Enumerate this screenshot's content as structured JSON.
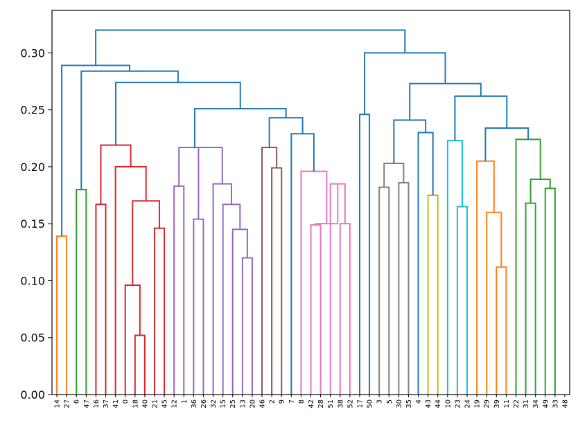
{
  "chart_data": {
    "type": "dendrogram",
    "title": "",
    "xlabel": "",
    "ylabel": "",
    "ylim": [
      0,
      0.33
    ],
    "yticks": [
      "0.00",
      "0.05",
      "0.10",
      "0.15",
      "0.20",
      "0.25",
      "0.30"
    ],
    "grid": false,
    "leaves": [
      "14",
      "27",
      "6",
      "47",
      "16",
      "37",
      "41",
      "0",
      "18",
      "40",
      "21",
      "45",
      "12",
      "1",
      "36",
      "26",
      "32",
      "15",
      "25",
      "13",
      "20",
      "46",
      "2",
      "9",
      "7",
      "8",
      "42",
      "28",
      "51",
      "38",
      "52",
      "17",
      "50",
      "3",
      "5",
      "30",
      "35",
      "4",
      "43",
      "44",
      "10",
      "23",
      "24",
      "19",
      "29",
      "39",
      "11",
      "22",
      "31",
      "34",
      "49",
      "33",
      "48"
    ],
    "merges": [
      {
        "a": 0,
        "b": 1,
        "h": 0.139,
        "color": "#ff7f0e"
      },
      {
        "a": 2,
        "b": 3,
        "h": 0.18,
        "color": "#2ca02c"
      },
      {
        "a": 8,
        "b": 9,
        "h": 0.052,
        "color": "#d62728"
      },
      {
        "a": 7,
        "b": 8.5,
        "h": 0.096,
        "color": "#d62728"
      },
      {
        "a": 10,
        "b": 11,
        "h": 0.146,
        "color": "#d62728"
      },
      {
        "a": 7.75,
        "b": 10.5,
        "h": 0.17,
        "color": "#d62728"
      },
      {
        "a": 6,
        "b": 9.125,
        "h": 0.2,
        "color": "#d62728"
      },
      {
        "a": 4,
        "b": 5,
        "h": 0.167,
        "color": "#d62728"
      },
      {
        "a": 4.5,
        "b": 7.5625,
        "h": 0.219,
        "color": "#d62728"
      },
      {
        "a": 12,
        "b": 13,
        "h": 0.183,
        "color": "#9467bd"
      },
      {
        "a": 14,
        "b": 15,
        "h": 0.154,
        "color": "#9467bd"
      },
      {
        "a": 19,
        "b": 20,
        "h": 0.12,
        "color": "#9467bd"
      },
      {
        "a": 18,
        "b": 19.5,
        "h": 0.145,
        "color": "#9467bd"
      },
      {
        "a": 17,
        "b": 18.75,
        "h": 0.167,
        "color": "#9467bd"
      },
      {
        "a": 16,
        "b": 17.875,
        "h": 0.185,
        "color": "#9467bd"
      },
      {
        "a": 14.5,
        "b": 16.9375,
        "h": 0.217,
        "color": "#9467bd"
      },
      {
        "a": 12.5,
        "b": 15.71875,
        "h": 0.217,
        "color": "#9467bd"
      },
      {
        "a": 22,
        "b": 23,
        "h": 0.199,
        "color": "#8c564b"
      },
      {
        "a": 21,
        "b": 22.5,
        "h": 0.217,
        "color": "#8c564b"
      },
      {
        "a": 29,
        "b": 30,
        "h": 0.15,
        "color": "#e377c2"
      },
      {
        "a": 28,
        "b": 29.5,
        "h": 0.185,
        "color": "#e377c2"
      },
      {
        "a": 26,
        "b": 27,
        "h": 0.149,
        "color": "#e377c2"
      },
      {
        "a": 26.5,
        "b": 28.75,
        "h": 0.15,
        "color": "#e377c2"
      },
      {
        "a": 25,
        "b": 27.625,
        "h": 0.196,
        "color": "#e377c2"
      },
      {
        "a": 24,
        "b": 26.3125,
        "h": 0.229,
        "color": "#1f77b4"
      },
      {
        "a": 21.75,
        "b": 25.15625,
        "h": 0.243,
        "color": "#1f77b4"
      },
      {
        "a": 14.109375,
        "b": 23.453125,
        "h": 0.251,
        "color": "#1f77b4"
      },
      {
        "a": 6.03125,
        "b": 18.78125,
        "h": 0.274,
        "color": "#1f77b4"
      },
      {
        "a": 2.5,
        "b": 12.40625,
        "h": 0.284,
        "color": "#1f77b4"
      },
      {
        "a": 0.5,
        "b": 7.453125,
        "h": 0.289,
        "color": "#1f77b4"
      },
      {
        "a": 33,
        "b": 34,
        "h": 0.182,
        "color": "#7f7f7f"
      },
      {
        "a": 35,
        "b": 36,
        "h": 0.186,
        "color": "#7f7f7f"
      },
      {
        "a": 33.5,
        "b": 35.5,
        "h": 0.203,
        "color": "#7f7f7f"
      },
      {
        "a": 38,
        "b": 39,
        "h": 0.175,
        "color": "#bcbd22"
      },
      {
        "a": 37,
        "b": 38.5,
        "h": 0.23,
        "color": "#1f77b4"
      },
      {
        "a": 34.5,
        "b": 37.75,
        "h": 0.241,
        "color": "#1f77b4"
      },
      {
        "a": 41,
        "b": 42,
        "h": 0.165,
        "color": "#17becf"
      },
      {
        "a": 40,
        "b": 41.5,
        "h": 0.223,
        "color": "#17becf"
      },
      {
        "a": 45,
        "b": 46,
        "h": 0.112,
        "color": "#ff7f0e"
      },
      {
        "a": 44,
        "b": 45.5,
        "h": 0.16,
        "color": "#ff7f0e"
      },
      {
        "a": 43,
        "b": 44.75,
        "h": 0.205,
        "color": "#ff7f0e"
      },
      {
        "a": 48,
        "b": 49,
        "h": 0.168,
        "color": "#2ca02c"
      },
      {
        "a": 50,
        "b": 51,
        "h": 0.181,
        "color": "#2ca02c"
      },
      {
        "a": 48.5,
        "b": 50.5,
        "h": 0.189,
        "color": "#2ca02c"
      },
      {
        "a": 47,
        "b": 49.5,
        "h": 0.224,
        "color": "#2ca02c"
      },
      {
        "a": 43.875,
        "b": 48.25,
        "h": 0.234,
        "color": "#1f77b4"
      },
      {
        "a": 40.75,
        "b": 46.0625,
        "h": 0.262,
        "color": "#1f77b4"
      },
      {
        "a": 36.125,
        "b": 43.40625,
        "h": 0.273,
        "color": "#1f77b4"
      },
      {
        "a": 31,
        "b": 32,
        "h": 0.246,
        "color": "#1f77b4"
      },
      {
        "a": 31.5,
        "b": 39.765625,
        "h": 0.3,
        "color": "#1f77b4"
      },
      {
        "a": 3.9765625,
        "b": 35.6328125,
        "h": 0.32,
        "color": "#1f77b4"
      }
    ]
  }
}
